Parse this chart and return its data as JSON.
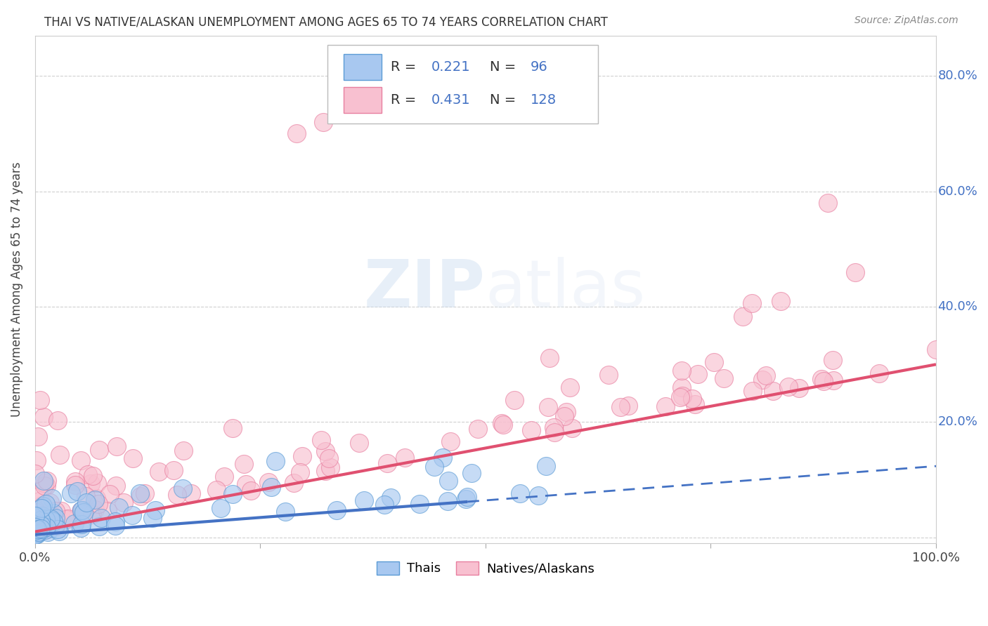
{
  "title": "THAI VS NATIVE/ALASKAN UNEMPLOYMENT AMONG AGES 65 TO 74 YEARS CORRELATION CHART",
  "source": "Source: ZipAtlas.com",
  "ylabel": "Unemployment Among Ages 65 to 74 years",
  "xlim": [
    0.0,
    1.0
  ],
  "ylim": [
    -0.01,
    0.87
  ],
  "ytick_positions": [
    0.0,
    0.2,
    0.4,
    0.6,
    0.8
  ],
  "ytick_labels": [
    "",
    "20.0%",
    "40.0%",
    "60.0%",
    "80.0%"
  ],
  "thai_color": "#A8C8F0",
  "thai_color_edge": "#5B9BD5",
  "native_color": "#F8C0D0",
  "native_color_edge": "#E87FA0",
  "thai_line_color": "#4472C4",
  "native_line_color": "#E05070",
  "thai_R": 0.221,
  "thai_N": 96,
  "native_R": 0.431,
  "native_N": 128,
  "watermark": "ZIPatlas",
  "background_color": "#ffffff",
  "grid_color": "#d0d0d0",
  "legend_label_thai": "Thais",
  "legend_label_native": "Natives/Alaskans",
  "thai_line_x0": 0.0,
  "thai_line_y0": 0.005,
  "thai_line_x1": 0.48,
  "thai_line_y1": 0.062,
  "thai_line_solid_end": 0.48,
  "thai_line_dash_x1": 1.0,
  "thai_line_dash_y1": 0.095,
  "native_line_x0": 0.0,
  "native_line_y0": 0.01,
  "native_line_x1": 1.0,
  "native_line_y1": 0.3
}
